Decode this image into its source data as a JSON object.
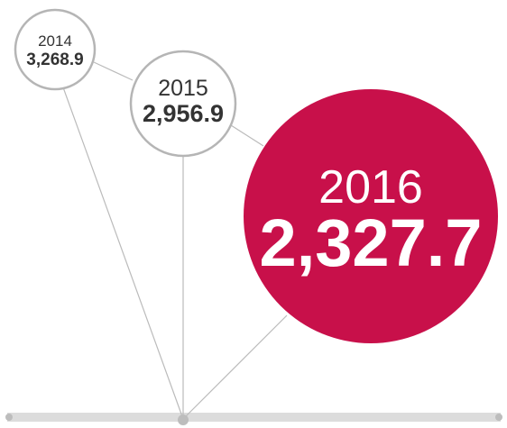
{
  "items": [
    {
      "year": "2014",
      "value": "3,268.9"
    },
    {
      "year": "2015",
      "value": "2,956.9"
    },
    {
      "year": "2016",
      "value": "2,327.7"
    }
  ]
}
